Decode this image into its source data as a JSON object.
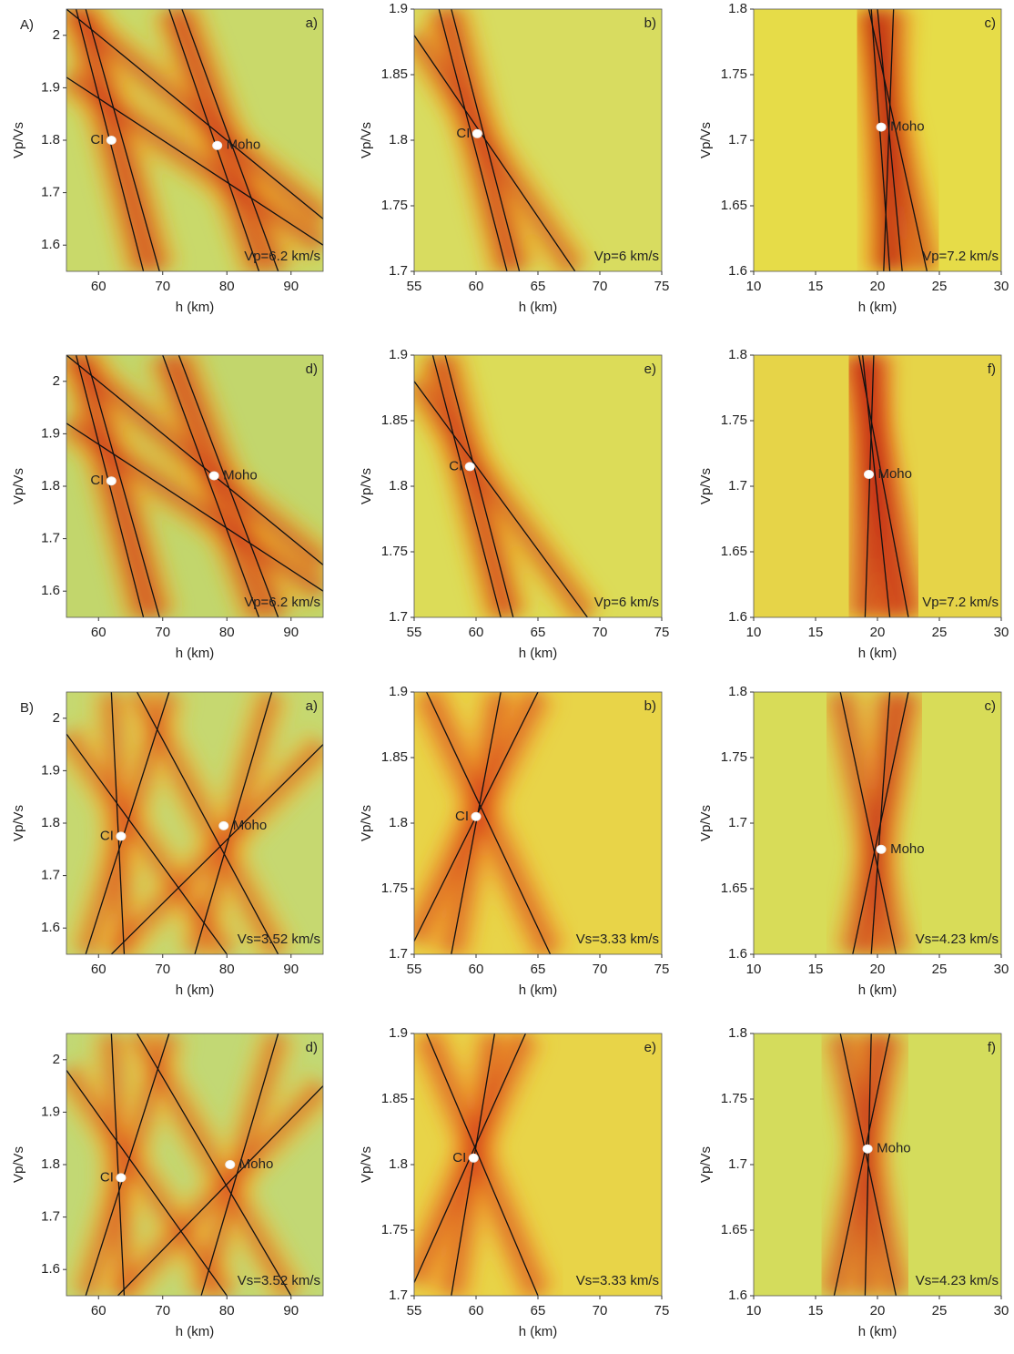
{
  "chart_data": [
    {
      "type": "contour",
      "group_label": "A)",
      "panel": "a)",
      "xlabel": "h (km)",
      "ylabel": "Vp/Vs",
      "annotation": "Vp=6.2 km/s",
      "xlim": [
        55,
        95
      ],
      "ylim": [
        1.55,
        2.05
      ],
      "xticks": [
        60,
        70,
        80,
        90
      ],
      "yticks": [
        1.6,
        1.7,
        1.8,
        1.9,
        2
      ],
      "colors": {
        "base": "#c9d96a",
        "ridge": "#c8281c",
        "halo": "#f0a020"
      },
      "points": [
        {
          "name": "CI",
          "x": 62,
          "y": 1.8,
          "side": "left"
        },
        {
          "name": "Moho",
          "x": 78.5,
          "y": 1.79,
          "side": "right"
        }
      ],
      "lines": [
        [
          56.5,
          2.05,
          67,
          1.55
        ],
        [
          58,
          2.05,
          69.5,
          1.55
        ],
        [
          55,
          1.92,
          95,
          1.6
        ],
        [
          71,
          2.05,
          85,
          1.55
        ],
        [
          73,
          2.05,
          88,
          1.55
        ],
        [
          55,
          2.05,
          95,
          1.65
        ]
      ]
    },
    {
      "type": "contour",
      "panel": "b)",
      "xlabel": "h (km)",
      "ylabel": "Vp/Vs",
      "annotation": "Vp=6 km/s",
      "xlim": [
        55,
        75
      ],
      "ylim": [
        1.7,
        1.9
      ],
      "xticks": [
        55,
        60,
        65,
        70,
        75
      ],
      "yticks": [
        1.7,
        1.75,
        1.8,
        1.85,
        1.9
      ],
      "colors": {
        "base": "#d8dc60",
        "ridge": "#c8281c",
        "halo": "#f0a020"
      },
      "points": [
        {
          "name": "CI",
          "x": 60.1,
          "y": 1.805,
          "side": "left"
        }
      ],
      "lines": [
        [
          57,
          1.9,
          62.5,
          1.7
        ],
        [
          58,
          1.9,
          63.5,
          1.7
        ],
        [
          55,
          1.88,
          68,
          1.7
        ]
      ]
    },
    {
      "type": "contour",
      "panel": "c)",
      "xlabel": "h (km)",
      "ylabel": "Vp/Vs",
      "annotation": "Vp=7.2 km/s",
      "xlim": [
        10,
        30
      ],
      "ylim": [
        1.6,
        1.8
      ],
      "xticks": [
        10,
        15,
        20,
        25,
        30
      ],
      "yticks": [
        1.6,
        1.65,
        1.7,
        1.75,
        1.8
      ],
      "colors": {
        "base": "#e6dc48",
        "ridge": "#b81c14",
        "halo": "#f08a20"
      },
      "points": [
        {
          "name": "Moho",
          "x": 20.3,
          "y": 1.71,
          "side": "right"
        }
      ],
      "lines": [
        [
          19.5,
          1.8,
          21,
          1.6
        ],
        [
          20,
          1.8,
          22,
          1.6
        ],
        [
          19.3,
          1.8,
          24,
          1.6
        ],
        [
          21.3,
          1.8,
          20.5,
          1.6
        ]
      ]
    },
    {
      "type": "contour",
      "panel": "d)",
      "xlabel": "h (km)",
      "ylabel": "Vp/Vs",
      "annotation": "Vp=6.2 km/s",
      "xlim": [
        55,
        95
      ],
      "ylim": [
        1.55,
        2.05
      ],
      "xticks": [
        60,
        70,
        80,
        90
      ],
      "yticks": [
        1.6,
        1.7,
        1.8,
        1.9,
        2
      ],
      "colors": {
        "base": "#c2d66c",
        "ridge": "#c8281c",
        "halo": "#f0a020"
      },
      "points": [
        {
          "name": "CI",
          "x": 62,
          "y": 1.81,
          "side": "left"
        },
        {
          "name": "Moho",
          "x": 78,
          "y": 1.82,
          "side": "right"
        }
      ],
      "lines": [
        [
          56.5,
          2.05,
          67,
          1.55
        ],
        [
          58,
          2.05,
          69.5,
          1.55
        ],
        [
          55,
          1.92,
          95,
          1.6
        ],
        [
          70,
          2.05,
          85,
          1.55
        ],
        [
          72.5,
          2.05,
          88,
          1.55
        ],
        [
          55,
          2.05,
          95,
          1.65
        ]
      ]
    },
    {
      "type": "contour",
      "panel": "e)",
      "xlabel": "h (km)",
      "ylabel": "Vp/Vs",
      "annotation": "Vp=6 km/s",
      "xlim": [
        55,
        75
      ],
      "ylim": [
        1.7,
        1.9
      ],
      "xticks": [
        55,
        60,
        65,
        70,
        75
      ],
      "yticks": [
        1.7,
        1.75,
        1.8,
        1.85,
        1.9
      ],
      "colors": {
        "base": "#dcdc58",
        "ridge": "#c8281c",
        "halo": "#f0a020"
      },
      "points": [
        {
          "name": "CI",
          "x": 59.5,
          "y": 1.815,
          "side": "left"
        }
      ],
      "lines": [
        [
          56.5,
          1.9,
          62,
          1.7
        ],
        [
          57.5,
          1.9,
          63,
          1.7
        ],
        [
          55,
          1.88,
          69,
          1.7
        ]
      ]
    },
    {
      "type": "contour",
      "panel": "f)",
      "xlabel": "h (km)",
      "ylabel": "Vp/Vs",
      "annotation": "Vp=7.2 km/s",
      "xlim": [
        10,
        30
      ],
      "ylim": [
        1.6,
        1.8
      ],
      "xticks": [
        10,
        15,
        20,
        25,
        30
      ],
      "yticks": [
        1.6,
        1.65,
        1.7,
        1.75,
        1.8
      ],
      "colors": {
        "base": "#e6d448",
        "ridge": "#b81c14",
        "halo": "#e8601c"
      },
      "points": [
        {
          "name": "Moho",
          "x": 19.3,
          "y": 1.709,
          "side": "right"
        }
      ],
      "lines": [
        [
          18.8,
          1.8,
          21,
          1.6
        ],
        [
          19.7,
          1.8,
          19,
          1.6
        ],
        [
          18.5,
          1.8,
          22.5,
          1.6
        ]
      ]
    },
    {
      "type": "contour",
      "group_label": "B)",
      "panel": "a)",
      "xlabel": "h (km)",
      "ylabel": "Vp/Vs",
      "annotation": "Vs=3.52 km/s",
      "xlim": [
        55,
        95
      ],
      "ylim": [
        1.55,
        2.05
      ],
      "xticks": [
        60,
        70,
        80,
        90
      ],
      "yticks": [
        1.6,
        1.7,
        1.8,
        1.9,
        2
      ],
      "colors": {
        "base": "#c6d870",
        "ridge": "#d8401c",
        "halo": "#f0b030"
      },
      "points": [
        {
          "name": "CI",
          "x": 63.5,
          "y": 1.775,
          "side": "left"
        },
        {
          "name": "Moho",
          "x": 79.5,
          "y": 1.795,
          "side": "right"
        }
      ],
      "lines": [
        [
          58,
          1.55,
          71,
          2.05
        ],
        [
          64,
          1.55,
          62,
          2.05
        ],
        [
          55,
          1.97,
          80,
          1.55
        ],
        [
          75,
          1.55,
          87,
          2.05
        ],
        [
          66,
          2.05,
          88,
          1.55
        ],
        [
          62,
          1.55,
          95,
          1.95
        ]
      ]
    },
    {
      "type": "contour",
      "panel": "b)",
      "xlabel": "h (km)",
      "ylabel": "Vp/Vs",
      "annotation": "Vs=3.33 km/s",
      "xlim": [
        55,
        75
      ],
      "ylim": [
        1.7,
        1.9
      ],
      "xticks": [
        55,
        60,
        65,
        70,
        75
      ],
      "yticks": [
        1.7,
        1.75,
        1.8,
        1.85,
        1.9
      ],
      "colors": {
        "base": "#e8d448",
        "ridge": "#d03018",
        "halo": "#f09028"
      },
      "points": [
        {
          "name": "CI",
          "x": 60,
          "y": 1.805,
          "side": "left"
        }
      ],
      "lines": [
        [
          55,
          1.71,
          65,
          1.9
        ],
        [
          58,
          1.7,
          62,
          1.9
        ],
        [
          56,
          1.9,
          66,
          1.7
        ]
      ]
    },
    {
      "type": "contour",
      "panel": "c)",
      "xlabel": "h (km)",
      "ylabel": "Vp/Vs",
      "annotation": "Vs=4.23 km/s",
      "xlim": [
        10,
        30
      ],
      "ylim": [
        1.6,
        1.8
      ],
      "xticks": [
        10,
        15,
        20,
        25,
        30
      ],
      "yticks": [
        1.6,
        1.65,
        1.7,
        1.75,
        1.8
      ],
      "colors": {
        "base": "#d8dc58",
        "ridge": "#c02818",
        "halo": "#f08a28"
      },
      "points": [
        {
          "name": "Moho",
          "x": 20.3,
          "y": 1.68,
          "side": "right"
        }
      ],
      "lines": [
        [
          17,
          1.8,
          21.5,
          1.6
        ],
        [
          18,
          1.6,
          22.5,
          1.8
        ],
        [
          21,
          1.8,
          19.5,
          1.6
        ]
      ]
    },
    {
      "type": "contour",
      "panel": "d)",
      "xlabel": "h (km)",
      "ylabel": "Vp/Vs",
      "annotation": "Vs=3.52 km/s",
      "xlim": [
        55,
        95
      ],
      "ylim": [
        1.55,
        2.05
      ],
      "xticks": [
        60,
        70,
        80,
        90
      ],
      "yticks": [
        1.6,
        1.7,
        1.8,
        1.9,
        2
      ],
      "colors": {
        "base": "#c2d874",
        "ridge": "#d8401c",
        "halo": "#f0b030"
      },
      "points": [
        {
          "name": "CI",
          "x": 63.5,
          "y": 1.775,
          "side": "left"
        },
        {
          "name": "Moho",
          "x": 80.5,
          "y": 1.8,
          "side": "right"
        }
      ],
      "lines": [
        [
          58,
          1.55,
          71,
          2.05
        ],
        [
          64,
          1.55,
          62,
          2.05
        ],
        [
          55,
          1.98,
          80,
          1.55
        ],
        [
          76,
          1.55,
          88,
          2.05
        ],
        [
          66,
          2.05,
          90,
          1.55
        ],
        [
          63,
          1.55,
          95,
          1.95
        ]
      ]
    },
    {
      "type": "contour",
      "panel": "e)",
      "xlabel": "h (km)",
      "ylabel": "Vp/Vs",
      "annotation": "Vs=3.33 km/s",
      "xlim": [
        55,
        75
      ],
      "ylim": [
        1.7,
        1.9
      ],
      "xticks": [
        55,
        60,
        65,
        70,
        75
      ],
      "yticks": [
        1.7,
        1.75,
        1.8,
        1.85,
        1.9
      ],
      "colors": {
        "base": "#e8d448",
        "ridge": "#d03018",
        "halo": "#f09028"
      },
      "points": [
        {
          "name": "CI",
          "x": 59.8,
          "y": 1.805,
          "side": "left"
        }
      ],
      "lines": [
        [
          55,
          1.71,
          64,
          1.9
        ],
        [
          58,
          1.7,
          61.5,
          1.9
        ],
        [
          56,
          1.9,
          65,
          1.7
        ]
      ]
    },
    {
      "type": "contour",
      "panel": "f)",
      "xlabel": "h (km)",
      "ylabel": "Vp/Vs",
      "annotation": "Vs=4.23 km/s",
      "xlim": [
        10,
        30
      ],
      "ylim": [
        1.6,
        1.8
      ],
      "xticks": [
        10,
        15,
        20,
        25,
        30
      ],
      "yticks": [
        1.6,
        1.65,
        1.7,
        1.75,
        1.8
      ],
      "colors": {
        "base": "#d4dc5c",
        "ridge": "#c02818",
        "halo": "#f08a28"
      },
      "points": [
        {
          "name": "Moho",
          "x": 19.2,
          "y": 1.712,
          "side": "right"
        }
      ],
      "lines": [
        [
          17,
          1.8,
          21.5,
          1.6
        ],
        [
          19.5,
          1.8,
          19,
          1.6
        ],
        [
          21,
          1.8,
          16.5,
          1.6
        ]
      ]
    }
  ]
}
